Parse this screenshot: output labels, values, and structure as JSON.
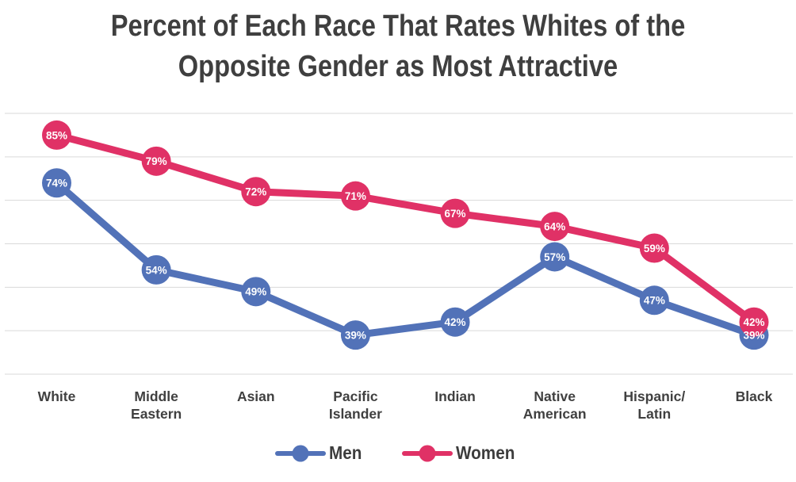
{
  "title_lines": [
    "Percent of Each Race That Rates Whites of the",
    "Opposite Gender as Most Attractive"
  ],
  "chart_data": {
    "type": "line",
    "title": "Percent of Each Race That Rates Whites of the Opposite Gender as Most Attractive",
    "categories": [
      "White",
      "Middle Eastern",
      "Asian",
      "Pacific Islander",
      "Indian",
      "Native American",
      "Hispanic/Latin",
      "Black"
    ],
    "category_label_lines": [
      [
        "White"
      ],
      [
        "Middle",
        "Eastern"
      ],
      [
        "Asian"
      ],
      [
        "Pacific",
        "Islander"
      ],
      [
        "Indian"
      ],
      [
        "Native",
        "American"
      ],
      [
        "Hispanic/",
        "Latin"
      ],
      [
        "Black"
      ]
    ],
    "series": [
      {
        "name": "Men",
        "color": "#5272b8",
        "values": [
          74,
          54,
          49,
          39,
          42,
          57,
          47,
          39
        ]
      },
      {
        "name": "Women",
        "color": "#e03166",
        "values": [
          85,
          79,
          72,
          71,
          67,
          64,
          59,
          42
        ]
      }
    ],
    "data_labels": true,
    "data_label_suffix": "%",
    "data_label_color": "#ffffff",
    "xlabel": "",
    "ylabel": "",
    "ylim": [
      30,
      90
    ],
    "gridlines_every": 10,
    "grid": true,
    "grid_color": "#d9d9d9",
    "background": "#ffffff",
    "legend_position": "bottom"
  }
}
